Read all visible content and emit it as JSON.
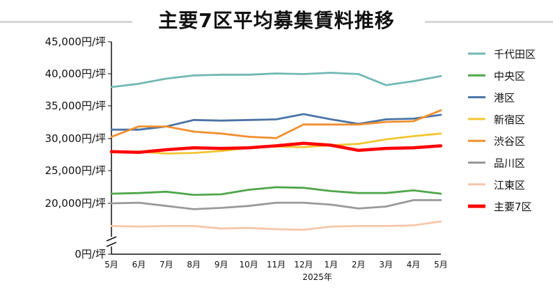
{
  "chart_data": {
    "type": "line",
    "title": "主要7区平均募集賃料推移",
    "x": [
      "5月",
      "6月",
      "7月",
      "8月",
      "9月",
      "10月",
      "11月",
      "12月",
      "1月",
      "2月",
      "3月",
      "4月",
      "5月"
    ],
    "xlabel_note": "2025年",
    "y_ticks": [
      "45,000円/坪",
      "40,000円/坪",
      "35,000円/坪",
      "30,000円/坪",
      "25,000円/坪",
      "20,000円/坪",
      "0円/坪"
    ],
    "ylim": [
      16000,
      45000
    ],
    "y_axis_break": true,
    "grid": false,
    "legend_position": "right",
    "series": [
      {
        "name": "千代田区",
        "color": "#72b8b4",
        "values": [
          38000,
          38500,
          39300,
          39800,
          39900,
          39900,
          40100,
          40000,
          40200,
          40000,
          38300,
          38900,
          39700
        ]
      },
      {
        "name": "中央区",
        "color": "#4ea64a",
        "values": [
          21500,
          21600,
          21800,
          21300,
          21400,
          22100,
          22500,
          22400,
          21900,
          21600,
          21600,
          22000,
          21500
        ]
      },
      {
        "name": "港区",
        "color": "#4a73a6",
        "values": [
          31400,
          31400,
          31900,
          32900,
          32800,
          32900,
          33000,
          33800,
          33000,
          32300,
          33000,
          33100,
          33700
        ]
      },
      {
        "name": "新宿区",
        "color": "#f2c531",
        "values": [
          27900,
          28000,
          27700,
          27800,
          28100,
          28600,
          28800,
          28700,
          29000,
          29200,
          29900,
          30400,
          30800
        ]
      },
      {
        "name": "渋谷区",
        "color": "#f18f2e",
        "values": [
          30300,
          31900,
          31900,
          31100,
          30800,
          30300,
          30100,
          32200,
          32200,
          32200,
          32600,
          32700,
          34400
        ]
      },
      {
        "name": "品川区",
        "color": "#999999",
        "values": [
          20000,
          20100,
          19600,
          19100,
          19300,
          19600,
          20100,
          20100,
          19800,
          19200,
          19500,
          20500,
          20500
        ]
      },
      {
        "name": "江東区",
        "color": "#f5c6aa",
        "values": [
          16500,
          16400,
          16500,
          16500,
          16100,
          16200,
          16000,
          15900,
          16400,
          16500,
          16500,
          16600,
          17200
        ]
      },
      {
        "name": "主要7区",
        "color": "#ff0000",
        "values": [
          28000,
          27900,
          28300,
          28600,
          28500,
          28600,
          28900,
          29300,
          29000,
          28200,
          28500,
          28600,
          28900
        ]
      }
    ]
  }
}
